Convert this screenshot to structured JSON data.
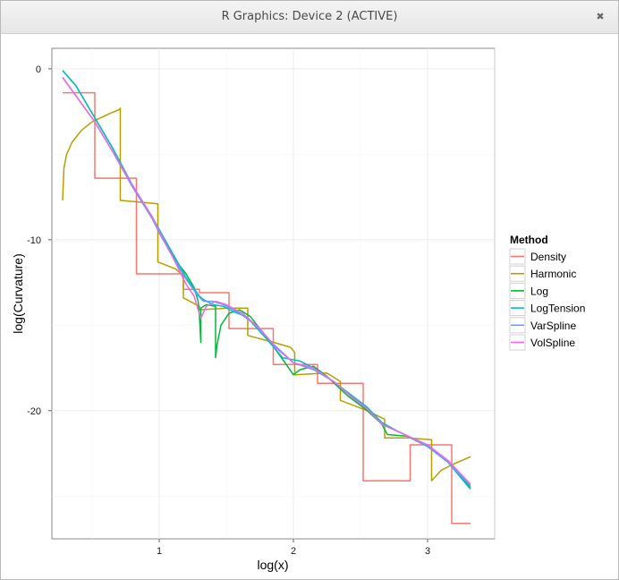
{
  "window": {
    "title": "R Graphics: Device 2 (ACTIVE)",
    "close_glyph": "✖"
  },
  "chart_data": {
    "type": "line",
    "title": "",
    "xlabel": "log(x)",
    "ylabel": "log(Curvature)",
    "xlim": [
      0.2,
      3.5
    ],
    "ylim": [
      -27.5,
      1.2
    ],
    "x_ticks": [
      {
        "value": 1,
        "label": "1"
      },
      {
        "value": 2,
        "label": "2"
      },
      {
        "value": 3,
        "label": "3"
      }
    ],
    "y_ticks": [
      {
        "value": 0,
        "label": "0"
      },
      {
        "value": -10,
        "label": "-10"
      },
      {
        "value": -20,
        "label": "-20"
      }
    ],
    "grid": true,
    "legend": {
      "title": "Method",
      "position": "right"
    },
    "series": [
      {
        "name": "Density",
        "color": "#F8766D",
        "points": [
          [
            0.28,
            -1.4
          ],
          [
            0.52,
            -1.4
          ],
          [
            0.52,
            -6.4
          ],
          [
            0.83,
            -6.4
          ],
          [
            0.83,
            -12.0
          ],
          [
            1.18,
            -12.0
          ],
          [
            1.18,
            -12.9
          ],
          [
            1.3,
            -12.9
          ],
          [
            1.3,
            -13.1
          ],
          [
            1.52,
            -13.1
          ],
          [
            1.52,
            -15.2
          ],
          [
            1.85,
            -15.2
          ],
          [
            1.85,
            -17.3
          ],
          [
            2.18,
            -17.3
          ],
          [
            2.18,
            -18.4
          ],
          [
            2.52,
            -18.4
          ],
          [
            2.52,
            -24.1
          ],
          [
            2.87,
            -24.1
          ],
          [
            2.87,
            -22.0
          ],
          [
            3.18,
            -22.0
          ],
          [
            3.18,
            -26.6
          ],
          [
            3.32,
            -26.6
          ]
        ]
      },
      {
        "name": "Harmonic",
        "color": "#B79F00",
        "points": [
          [
            0.28,
            -7.7
          ],
          [
            0.29,
            -5.8
          ],
          [
            0.31,
            -5.0
          ],
          [
            0.35,
            -4.3
          ],
          [
            0.42,
            -3.6
          ],
          [
            0.5,
            -3.1
          ],
          [
            0.58,
            -2.8
          ],
          [
            0.65,
            -2.55
          ],
          [
            0.7,
            -2.4
          ],
          [
            0.71,
            -2.3
          ],
          [
            0.71,
            -7.7
          ],
          [
            0.85,
            -7.8
          ],
          [
            0.99,
            -7.9
          ],
          [
            0.99,
            -11.3
          ],
          [
            1.12,
            -11.7
          ],
          [
            1.18,
            -12.1
          ],
          [
            1.18,
            -13.4
          ],
          [
            1.3,
            -13.9
          ],
          [
            1.3,
            -14.1
          ],
          [
            1.52,
            -14.0
          ],
          [
            1.52,
            -14.0
          ],
          [
            1.66,
            -14.0
          ],
          [
            1.66,
            -15.6
          ],
          [
            1.85,
            -16.0
          ],
          [
            1.98,
            -16.3
          ],
          [
            2.01,
            -16.6
          ],
          [
            2.01,
            -17.9
          ],
          [
            2.25,
            -17.8
          ],
          [
            2.35,
            -18.3
          ],
          [
            2.35,
            -19.4
          ],
          [
            2.55,
            -20.0
          ],
          [
            2.68,
            -20.5
          ],
          [
            2.68,
            -21.6
          ],
          [
            2.85,
            -21.6
          ],
          [
            3.03,
            -21.7
          ],
          [
            3.03,
            -24.1
          ],
          [
            3.1,
            -23.5
          ],
          [
            3.2,
            -23.1
          ],
          [
            3.32,
            -22.7
          ]
        ]
      },
      {
        "name": "Log",
        "color": "#00BA38",
        "points": [
          [
            0.28,
            -0.1
          ],
          [
            0.38,
            -1.0
          ],
          [
            0.5,
            -2.6
          ],
          [
            0.65,
            -4.6
          ],
          [
            0.8,
            -6.8
          ],
          [
            0.95,
            -8.7
          ],
          [
            1.0,
            -9.5
          ],
          [
            1.05,
            -10.2
          ],
          [
            1.1,
            -10.9
          ],
          [
            1.15,
            -11.5
          ],
          [
            1.2,
            -12.0
          ],
          [
            1.26,
            -12.8
          ],
          [
            1.29,
            -13.6
          ],
          [
            1.3,
            -14.5
          ],
          [
            1.31,
            -16.0
          ],
          [
            1.31,
            -14.0
          ],
          [
            1.35,
            -13.8
          ],
          [
            1.42,
            -13.9
          ],
          [
            1.42,
            -16.9
          ],
          [
            1.43,
            -16.2
          ],
          [
            1.46,
            -15.0
          ],
          [
            1.52,
            -14.3
          ],
          [
            1.6,
            -14.1
          ],
          [
            1.68,
            -14.5
          ],
          [
            1.8,
            -15.7
          ],
          [
            1.92,
            -17.0
          ],
          [
            2.0,
            -17.9
          ],
          [
            2.05,
            -17.6
          ],
          [
            2.15,
            -17.4
          ],
          [
            2.25,
            -18.0
          ],
          [
            2.4,
            -19.1
          ],
          [
            2.55,
            -20.0
          ],
          [
            2.66,
            -20.8
          ],
          [
            2.7,
            -21.4
          ],
          [
            2.85,
            -21.5
          ],
          [
            3.0,
            -22.1
          ],
          [
            3.15,
            -23.0
          ],
          [
            3.32,
            -24.5
          ]
        ]
      },
      {
        "name": "LogTension",
        "color": "#00BFC4",
        "points": [
          [
            0.28,
            -0.1
          ],
          [
            0.38,
            -1.0
          ],
          [
            0.5,
            -2.6
          ],
          [
            0.65,
            -4.6
          ],
          [
            0.8,
            -6.8
          ],
          [
            0.95,
            -8.7
          ],
          [
            1.0,
            -9.4
          ],
          [
            1.1,
            -10.8
          ],
          [
            1.2,
            -12.2
          ],
          [
            1.3,
            -13.3
          ],
          [
            1.33,
            -13.5
          ],
          [
            1.4,
            -13.8
          ],
          [
            1.48,
            -13.9
          ],
          [
            1.55,
            -14.2
          ],
          [
            1.65,
            -14.5
          ],
          [
            1.8,
            -15.8
          ],
          [
            1.92,
            -16.9
          ],
          [
            2.05,
            -17.1
          ],
          [
            2.15,
            -17.5
          ],
          [
            2.3,
            -18.3
          ],
          [
            2.45,
            -19.2
          ],
          [
            2.55,
            -19.8
          ],
          [
            2.66,
            -20.7
          ],
          [
            2.8,
            -21.3
          ],
          [
            3.0,
            -22.0
          ],
          [
            3.15,
            -23.0
          ],
          [
            3.32,
            -24.6
          ]
        ]
      },
      {
        "name": "VarSpline",
        "color": "#619CFF",
        "points": [
          [
            0.28,
            -0.5
          ],
          [
            0.4,
            -1.8
          ],
          [
            0.52,
            -3.1
          ],
          [
            0.65,
            -4.8
          ],
          [
            0.8,
            -6.9
          ],
          [
            0.95,
            -8.8
          ],
          [
            1.0,
            -9.6
          ],
          [
            1.1,
            -11.0
          ],
          [
            1.2,
            -12.3
          ],
          [
            1.28,
            -13.2
          ],
          [
            1.33,
            -13.6
          ],
          [
            1.4,
            -13.6
          ],
          [
            1.48,
            -13.8
          ],
          [
            1.6,
            -14.3
          ],
          [
            1.72,
            -15.0
          ],
          [
            1.85,
            -16.1
          ],
          [
            2.0,
            -17.2
          ],
          [
            2.15,
            -17.6
          ],
          [
            2.3,
            -18.3
          ],
          [
            2.45,
            -19.3
          ],
          [
            2.55,
            -19.9
          ],
          [
            2.66,
            -20.8
          ],
          [
            2.8,
            -21.3
          ],
          [
            3.0,
            -22.1
          ],
          [
            3.15,
            -23.0
          ],
          [
            3.32,
            -24.4
          ]
        ]
      },
      {
        "name": "VolSpline",
        "color": "#F564E3",
        "points": [
          [
            0.28,
            -0.5
          ],
          [
            0.4,
            -1.8
          ],
          [
            0.52,
            -3.1
          ],
          [
            0.65,
            -4.8
          ],
          [
            0.8,
            -6.8
          ],
          [
            0.95,
            -8.7
          ],
          [
            1.0,
            -9.5
          ],
          [
            1.1,
            -11.0
          ],
          [
            1.2,
            -12.6
          ],
          [
            1.26,
            -13.3
          ],
          [
            1.31,
            -14.6
          ],
          [
            1.35,
            -13.9
          ],
          [
            1.42,
            -13.6
          ],
          [
            1.5,
            -13.8
          ],
          [
            1.62,
            -14.3
          ],
          [
            1.75,
            -15.2
          ],
          [
            1.88,
            -16.4
          ],
          [
            2.0,
            -17.2
          ],
          [
            2.15,
            -17.5
          ],
          [
            2.3,
            -18.3
          ],
          [
            2.45,
            -19.3
          ],
          [
            2.55,
            -19.9
          ],
          [
            2.66,
            -20.8
          ],
          [
            2.8,
            -21.3
          ],
          [
            3.0,
            -22.0
          ],
          [
            3.15,
            -22.9
          ],
          [
            3.32,
            -24.3
          ]
        ]
      }
    ]
  }
}
